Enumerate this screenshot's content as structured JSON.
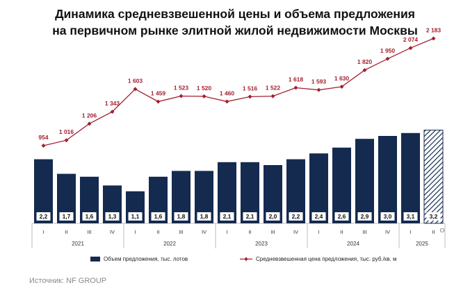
{
  "title": {
    "line1": "Динамика средневзвешенной цены и объема предложения",
    "line2": "на первичном рынке элитной жилой недвижимости Москвы"
  },
  "source": "Источник: NF GROUP",
  "legend": {
    "bars": "Объем предложения, тыс. лотов",
    "line": "Средневзвешенная цена предложения, тыс. руб./кв. м"
  },
  "colors": {
    "bar": "#152a4f",
    "line": "#a3202f",
    "axis": "#bdbdbd",
    "label": "#a3202f"
  },
  "chart_data": {
    "type": "bar",
    "categories": [
      "I",
      "II",
      "III",
      "IV",
      "I",
      "II",
      "III",
      "IV",
      "I",
      "II",
      "III",
      "IV",
      "I",
      "II",
      "III",
      "IV",
      "I",
      "II"
    ],
    "years": [
      {
        "label": "2021",
        "count": 4
      },
      {
        "label": "2022",
        "count": 4
      },
      {
        "label": "2023",
        "count": 4
      },
      {
        "label": "2024",
        "count": 4
      },
      {
        "label": "2025",
        "count": 2
      }
    ],
    "extra_mark": "О",
    "series": [
      {
        "name": "Объем предложения, тыс. лотов",
        "type": "bar",
        "values": [
          2.2,
          1.7,
          1.6,
          1.3,
          1.1,
          1.6,
          1.8,
          1.8,
          2.1,
          2.1,
          2.0,
          2.2,
          2.4,
          2.6,
          2.9,
          3.0,
          3.1,
          3.2
        ],
        "labels": [
          "2,2",
          "1,7",
          "1,6",
          "1,3",
          "1,1",
          "1,6",
          "1,8",
          "1,8",
          "2,1",
          "2,1",
          "2,0",
          "2,2",
          "2,4",
          "2,6",
          "2,9",
          "3,0",
          "3,1",
          "3,2"
        ],
        "hatched_index": 17
      },
      {
        "name": "Средневзвешенная цена предложения, тыс. руб./кв. м",
        "type": "line",
        "values": [
          954,
          1016,
          1206,
          1343,
          1603,
          1459,
          1523,
          1520,
          1460,
          1516,
          1522,
          1618,
          1593,
          1630,
          1820,
          1950,
          2074,
          2183
        ],
        "labels": [
          "954",
          "1 016",
          "1 206",
          "1 343",
          "1 603",
          "1 459",
          "1 523",
          "1 520",
          "1 460",
          "1 516",
          "1 522",
          "1 618",
          "1 593",
          "1 630",
          "1 820",
          "1 950",
          "2 074",
          "2 183"
        ]
      }
    ]
  }
}
